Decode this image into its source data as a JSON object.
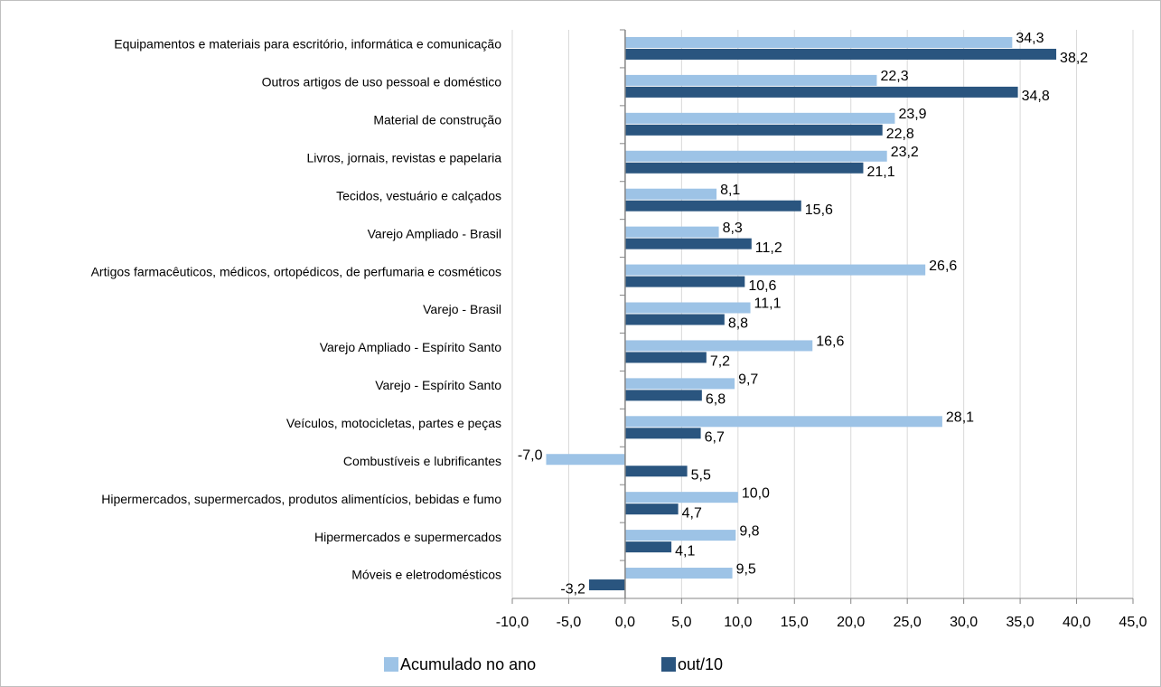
{
  "chart_data": {
    "type": "bar",
    "orientation": "horizontal",
    "categories": [
      "Equipamentos e materiais para escritório, informática e comunicação",
      "Outros artigos de uso pessoal e doméstico",
      "Material de construção",
      "Livros, jornais, revistas e papelaria",
      "Tecidos, vestuário e calçados",
      "Varejo Ampliado - Brasil",
      "Artigos farmacêuticos, médicos, ortopédicos, de perfumaria e cosméticos",
      "Varejo - Brasil",
      "Varejo Ampliado - Espírito Santo",
      "Varejo - Espírito Santo",
      "Veículos, motocicletas, partes e peças",
      "Combustíveis e lubrificantes",
      "Hipermercados, supermercados, produtos alimentícios, bebidas e fumo",
      "Hipermercados e supermercados",
      "Móveis e eletrodomésticos"
    ],
    "series": [
      {
        "name": "Acumulado no ano",
        "color": "#9dc3e6",
        "values": [
          34.3,
          22.3,
          23.9,
          23.2,
          8.1,
          8.3,
          26.6,
          11.1,
          16.6,
          9.7,
          28.1,
          -7.0,
          10.0,
          9.8,
          9.5
        ],
        "value_labels": [
          "34,3",
          "22,3",
          "23,9",
          "23,2",
          "8,1",
          "8,3",
          "26,6",
          "11,1",
          "16,6",
          "9,7",
          "28,1",
          "-7,0",
          "10,0",
          "9,8",
          "9,5"
        ]
      },
      {
        "name": "out/10",
        "color": "#2a557f",
        "values": [
          38.2,
          34.8,
          22.8,
          21.1,
          15.6,
          11.2,
          10.6,
          8.8,
          7.2,
          6.8,
          6.7,
          5.5,
          4.7,
          4.1,
          -3.2
        ],
        "value_labels": [
          "38,2",
          "34,8",
          "22,8",
          "21,1",
          "15,6",
          "11,2",
          "10,6",
          "8,8",
          "7,2",
          "6,8",
          "6,7",
          "5,5",
          "4,7",
          "4,1",
          "-3,2"
        ]
      }
    ],
    "xlim": [
      -10,
      45
    ],
    "xticks": [
      {
        "value": -10,
        "label": "-10,0"
      },
      {
        "value": -5,
        "label": "-5,0"
      },
      {
        "value": 0,
        "label": "0,0"
      },
      {
        "value": 5,
        "label": "5,0"
      },
      {
        "value": 10,
        "label": "10,0"
      },
      {
        "value": 15,
        "label": "15,0"
      },
      {
        "value": 20,
        "label": "20,0"
      },
      {
        "value": 25,
        "label": "25,0"
      },
      {
        "value": 30,
        "label": "30,0"
      },
      {
        "value": 35,
        "label": "35,0"
      },
      {
        "value": 40,
        "label": "40,0"
      },
      {
        "value": 45,
        "label": "45,0"
      }
    ],
    "grid": true,
    "legend": "bottom"
  }
}
